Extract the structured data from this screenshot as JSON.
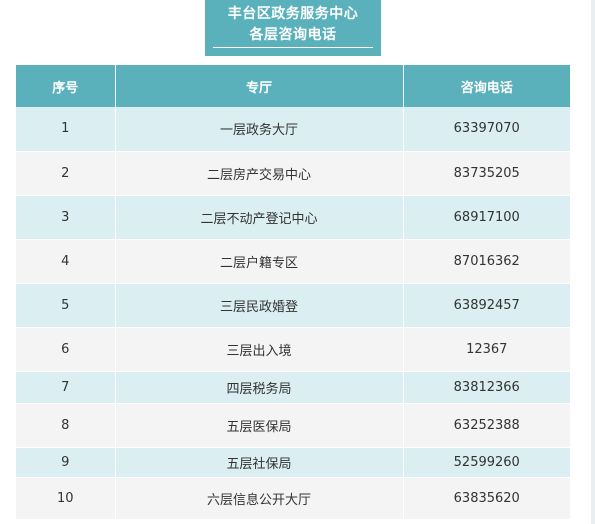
{
  "title": {
    "line1": "丰台区政务服务中心",
    "line2": "各层咨询电话"
  },
  "table": {
    "headers": [
      "序号",
      "专厅",
      "咨询电话"
    ],
    "rows": [
      {
        "idx": "1",
        "hall": "一层政务大厅",
        "phone": "63397070"
      },
      {
        "idx": "2",
        "hall": "二层房产交易中心",
        "phone": "83735205"
      },
      {
        "idx": "3",
        "hall": "二层不动产登记中心",
        "phone": "68917100"
      },
      {
        "idx": "4",
        "hall": "二层户籍专区",
        "phone": "87016362"
      },
      {
        "idx": "5",
        "hall": "三层民政婚登",
        "phone": "63892457"
      },
      {
        "idx": "6",
        "hall": "三层出入境",
        "phone": "12367"
      },
      {
        "idx": "7",
        "hall": "四层税务局",
        "phone": "83812366"
      },
      {
        "idx": "8",
        "hall": "五层医保局",
        "phone": "63252388"
      },
      {
        "idx": "9",
        "hall": "五层社保局",
        "phone": "52599260"
      },
      {
        "idx": "10",
        "hall": "六层信息公开大厅",
        "phone": "63835620"
      }
    ]
  },
  "colors": {
    "accent": "#5bb1bb",
    "row_odd": "#dbeef1",
    "row_even": "#f4f4f4"
  }
}
